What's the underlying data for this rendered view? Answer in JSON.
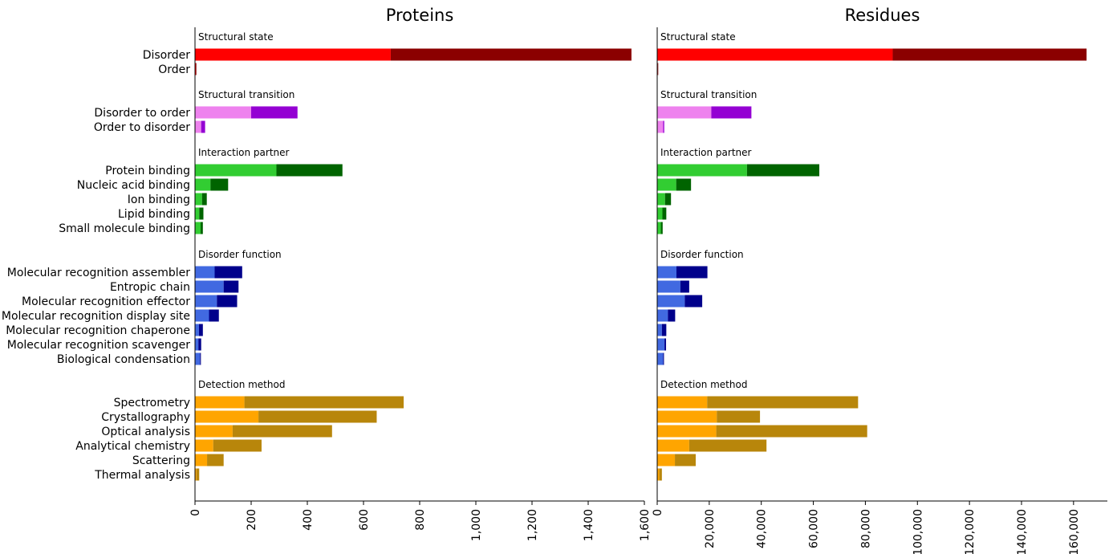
{
  "chart_data": [
    {
      "type": "bar",
      "orientation": "horizontal",
      "stacked": true,
      "title": "Proteins",
      "xlim": [
        0,
        1600
      ],
      "xticks": [
        0,
        200,
        400,
        600,
        800,
        1000,
        1200,
        1400,
        1600
      ],
      "xtick_labels": [
        "0",
        "200",
        "400",
        "600",
        "800",
        "1,000",
        "1,200",
        "1,400",
        "1,600"
      ],
      "groups": [
        {
          "label": "Structural state",
          "categories": [
            {
              "name": "Disorder",
              "light": 697,
              "total": 1554
            },
            {
              "name": "Order",
              "light": 3,
              "total": 5
            }
          ]
        },
        {
          "label": "Structural transition",
          "categories": [
            {
              "name": "Disorder to order",
              "light": 200,
              "total": 365
            },
            {
              "name": "Order to disorder",
              "light": 22,
              "total": 36
            }
          ]
        },
        {
          "label": "Interaction partner",
          "categories": [
            {
              "name": "Protein binding",
              "light": 290,
              "total": 525
            },
            {
              "name": "Nucleic acid binding",
              "light": 55,
              "total": 118
            },
            {
              "name": "Ion binding",
              "light": 25,
              "total": 42
            },
            {
              "name": "Lipid binding",
              "light": 15,
              "total": 30
            },
            {
              "name": "Small molecule binding",
              "light": 20,
              "total": 28
            }
          ]
        },
        {
          "label": "Disorder function",
          "categories": [
            {
              "name": "Molecular recognition assembler",
              "light": 70,
              "total": 168
            },
            {
              "name": "Entropic chain",
              "light": 102,
              "total": 155
            },
            {
              "name": "Molecular recognition effector",
              "light": 78,
              "total": 150
            },
            {
              "name": "Molecular recognition display site",
              "light": 50,
              "total": 85
            },
            {
              "name": "Molecular recognition chaperone",
              "light": 14,
              "total": 28
            },
            {
              "name": "Molecular recognition scavenger",
              "light": 12,
              "total": 22
            },
            {
              "name": "Biological condensation",
              "light": 18,
              "total": 21
            }
          ]
        },
        {
          "label": "Detection method",
          "categories": [
            {
              "name": "Spectrometry",
              "light": 176,
              "total": 743
            },
            {
              "name": "Crystallography",
              "light": 226,
              "total": 647
            },
            {
              "name": "Optical analysis",
              "light": 134,
              "total": 488
            },
            {
              "name": "Analytical chemistry",
              "light": 65,
              "total": 237
            },
            {
              "name": "Scattering",
              "light": 43,
              "total": 102
            },
            {
              "name": "Thermal analysis",
              "light": 5,
              "total": 15
            }
          ]
        }
      ]
    },
    {
      "type": "bar",
      "orientation": "horizontal",
      "stacked": true,
      "title": "Residues",
      "xlim": [
        0,
        173000
      ],
      "xticks": [
        0,
        20000,
        40000,
        60000,
        80000,
        100000,
        120000,
        140000,
        160000
      ],
      "xtick_labels": [
        "0",
        "20,000",
        "40,000",
        "60,000",
        "80,000",
        "100,000",
        "120,000",
        "140,000",
        "160,000"
      ],
      "groups": [
        {
          "label": "Structural state",
          "categories": [
            {
              "name": "Disorder",
              "light": 90500,
              "total": 165000
            },
            {
              "name": "Order",
              "light": 200,
              "total": 400
            }
          ]
        },
        {
          "label": "Structural transition",
          "categories": [
            {
              "name": "Disorder to order",
              "light": 20800,
              "total": 36200
            },
            {
              "name": "Order to disorder",
              "light": 2300,
              "total": 2700
            }
          ]
        },
        {
          "label": "Interaction partner",
          "categories": [
            {
              "name": "Protein binding",
              "light": 34500,
              "total": 62300
            },
            {
              "name": "Nucleic acid binding",
              "light": 7300,
              "total": 13000
            },
            {
              "name": "Ion binding",
              "light": 3000,
              "total": 5300
            },
            {
              "name": "Lipid binding",
              "light": 2000,
              "total": 3500
            },
            {
              "name": "Small molecule binding",
              "light": 1400,
              "total": 2100
            }
          ]
        },
        {
          "label": "Disorder function",
          "categories": [
            {
              "name": "Molecular recognition assembler",
              "light": 7400,
              "total": 19300
            },
            {
              "name": "Entropic chain",
              "light": 8900,
              "total": 12300
            },
            {
              "name": "Molecular recognition effector",
              "light": 10600,
              "total": 17300
            },
            {
              "name": "Molecular recognition display site",
              "light": 4100,
              "total": 6900
            },
            {
              "name": "Molecular recognition chaperone",
              "light": 1800,
              "total": 3500
            },
            {
              "name": "Molecular recognition scavenger",
              "light": 2800,
              "total": 3400
            },
            {
              "name": "Biological condensation",
              "light": 2300,
              "total": 2600
            }
          ]
        },
        {
          "label": "Detection method",
          "categories": [
            {
              "name": "Spectrometry",
              "light": 19200,
              "total": 77200
            },
            {
              "name": "Crystallography",
              "light": 22900,
              "total": 39500
            },
            {
              "name": "Optical analysis",
              "light": 22700,
              "total": 80700
            },
            {
              "name": "Analytical chemistry",
              "light": 12300,
              "total": 42000
            },
            {
              "name": "Scattering",
              "light": 6800,
              "total": 14800
            },
            {
              "name": "Thermal analysis",
              "light": 800,
              "total": 1800
            }
          ]
        }
      ]
    }
  ],
  "colors": {
    "Structural state": [
      "#ff0000",
      "#8b0000"
    ],
    "Structural transition": [
      "#ee82ee",
      "#9400d3"
    ],
    "Interaction partner": [
      "#32cd32",
      "#006400"
    ],
    "Disorder function": [
      "#4169e1",
      "#00008b"
    ],
    "Detection method": [
      "#ffa500",
      "#b8860b"
    ]
  }
}
